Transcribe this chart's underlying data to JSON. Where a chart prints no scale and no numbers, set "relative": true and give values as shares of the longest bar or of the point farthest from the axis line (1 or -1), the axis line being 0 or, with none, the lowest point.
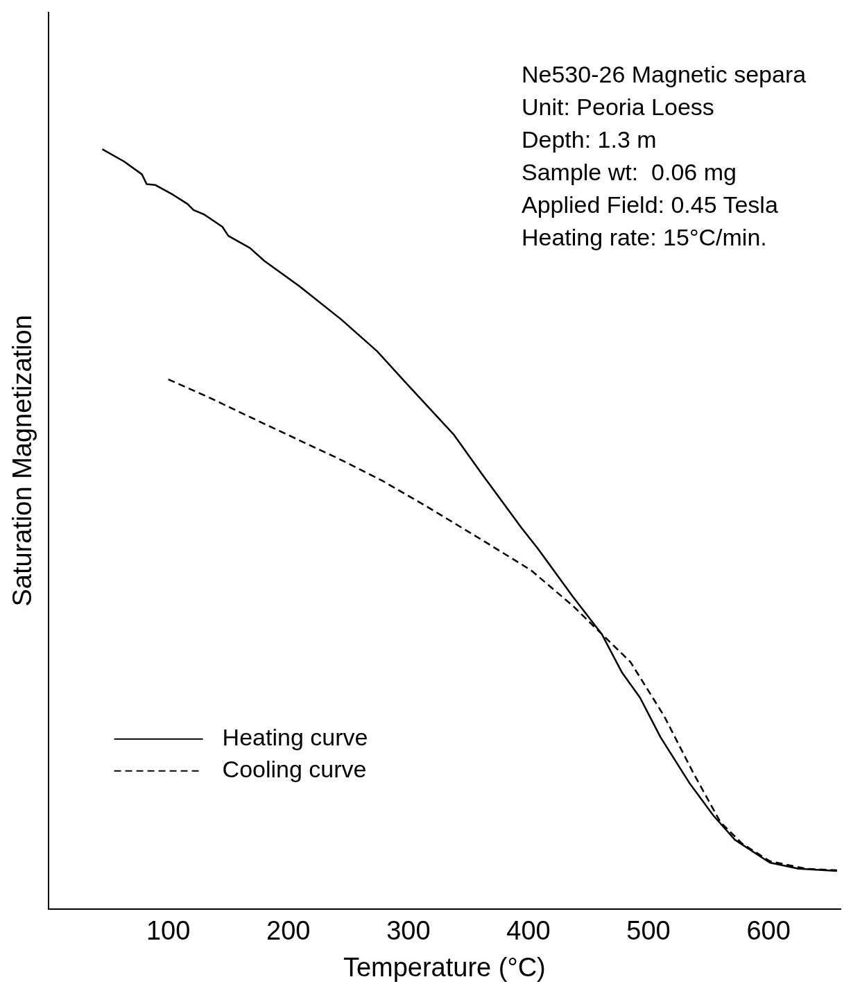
{
  "chart_data": {
    "type": "line",
    "relative": true,
    "xlabel": "Temperature (°C)",
    "ylabel": "Saturation Magnetization",
    "xlim": [
      0,
      660
    ],
    "xticks": [
      100,
      200,
      300,
      400,
      500,
      600
    ],
    "grid": false,
    "legend": "bottom left",
    "marker": "none",
    "annotations": [
      "Ne530-26 Magnetic separa",
      "Unit: Peoria Loess",
      "Depth: 1.3 m",
      "Sample wt:  0.06 mg",
      "Applied Field: 0.45 Tesla",
      "Heating rate: 15°C/min."
    ],
    "series": [
      {
        "name": "Heating curve",
        "color": "#000000",
        "line_style": "solid",
        "x": [
          45,
          63,
          78,
          82,
          89,
          104,
          116,
          121,
          130,
          145,
          150,
          168,
          180,
          209,
          244,
          274,
          297,
          338,
          361,
          394,
          408,
          437,
          461,
          478,
          493,
          510,
          534,
          554,
          572,
          601,
          625,
          657
        ],
        "values": [
          1,
          0.984,
          0.967,
          0.954,
          0.953,
          0.94,
          0.928,
          0.92,
          0.914,
          0.898,
          0.886,
          0.87,
          0.853,
          0.82,
          0.776,
          0.734,
          0.694,
          0.624,
          0.573,
          0.502,
          0.474,
          0.411,
          0.362,
          0.311,
          0.278,
          0.226,
          0.166,
          0.123,
          0.091,
          0.061,
          0.053,
          0.05
        ]
      },
      {
        "name": "Cooling curve",
        "color": "#000000",
        "line_style": "dashed",
        "x": [
          100,
          133,
          174,
          244,
          279,
          315,
          361,
          402,
          437,
          461,
          485,
          513,
          537,
          560,
          578,
          601,
          631,
          657
        ],
        "values": [
          0.697,
          0.674,
          0.643,
          0.591,
          0.563,
          0.53,
          0.486,
          0.446,
          0.399,
          0.362,
          0.325,
          0.254,
          0.18,
          0.114,
          0.086,
          0.063,
          0.053,
          0.051
        ]
      }
    ]
  }
}
